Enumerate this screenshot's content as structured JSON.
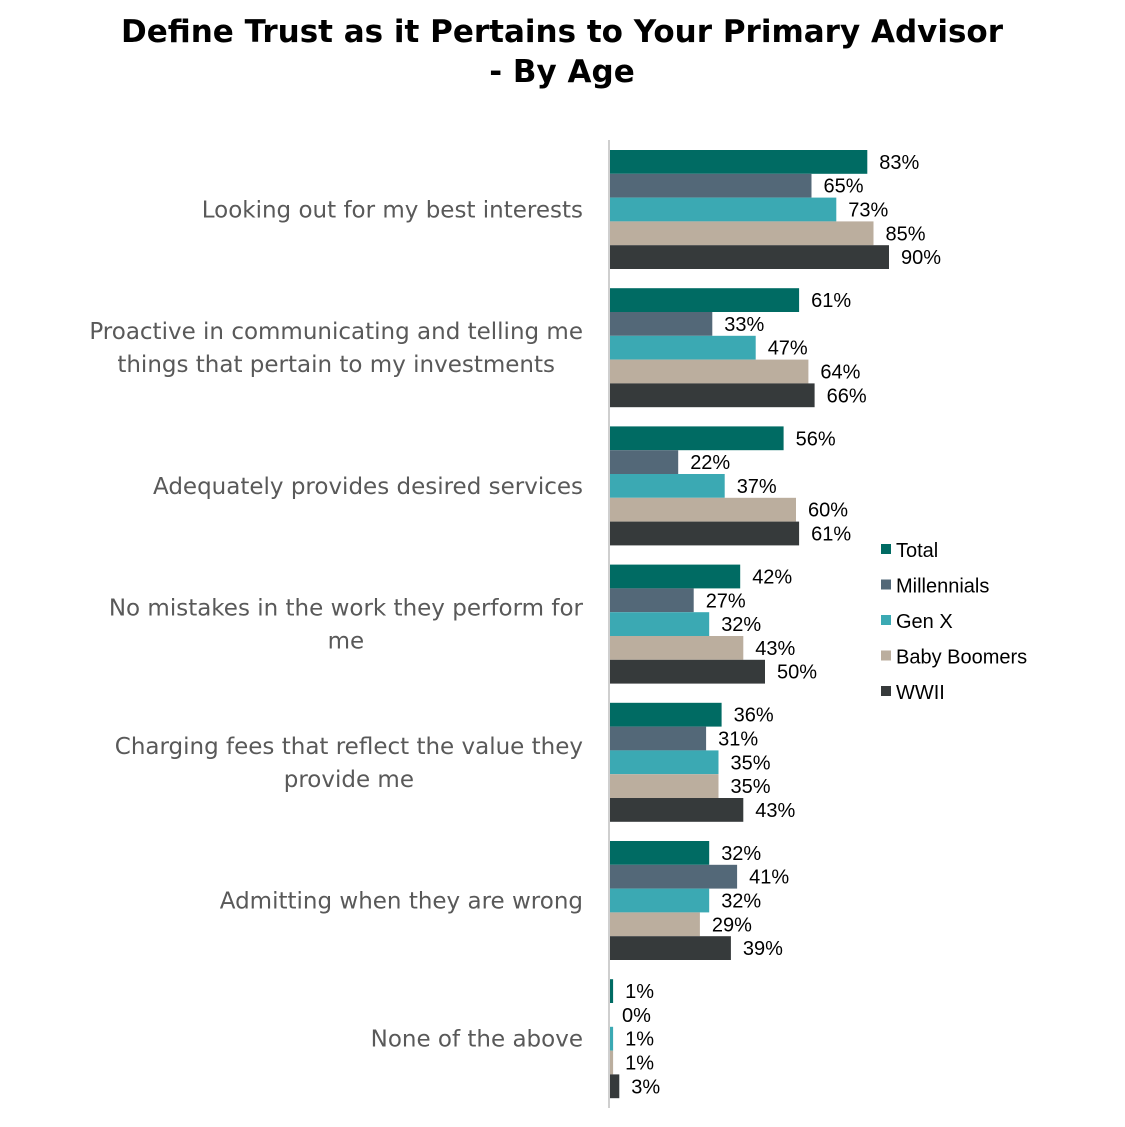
{
  "chart_data": {
    "type": "bar",
    "orientation": "horizontal",
    "title": [
      "Define Trust as it Pertains to Your Primary Advisor",
      "- By Age"
    ],
    "xlabel": "",
    "ylabel": "",
    "xlim": [
      0,
      100
    ],
    "grid": false,
    "legend_position": "right",
    "value_suffix": "%",
    "categories": [
      [
        "Looking out for my best interests"
      ],
      [
        "Proactive in communicating and telling me",
        "things that pertain to my investments"
      ],
      [
        "Adequately provides desired services"
      ],
      [
        "No mistakes in the work they perform for",
        "me"
      ],
      [
        "Charging fees that reflect the value they",
        "provide me"
      ],
      [
        "Admitting when they are wrong"
      ],
      [
        "None of the above"
      ]
    ],
    "series": [
      {
        "name": "Total",
        "color": "#006B63",
        "values": [
          83,
          61,
          56,
          42,
          36,
          32,
          1
        ]
      },
      {
        "name": "Millennials",
        "color": "#536878",
        "values": [
          65,
          33,
          22,
          27,
          31,
          41,
          0
        ]
      },
      {
        "name": "Gen X",
        "color": "#3BA9B3",
        "values": [
          73,
          47,
          37,
          32,
          35,
          32,
          1
        ]
      },
      {
        "name": "Baby Boomers",
        "color": "#BBAE9E",
        "values": [
          85,
          64,
          60,
          43,
          35,
          29,
          1
        ]
      },
      {
        "name": "WWII",
        "color": "#363A3B",
        "values": [
          90,
          66,
          61,
          50,
          43,
          39,
          3
        ]
      }
    ]
  }
}
